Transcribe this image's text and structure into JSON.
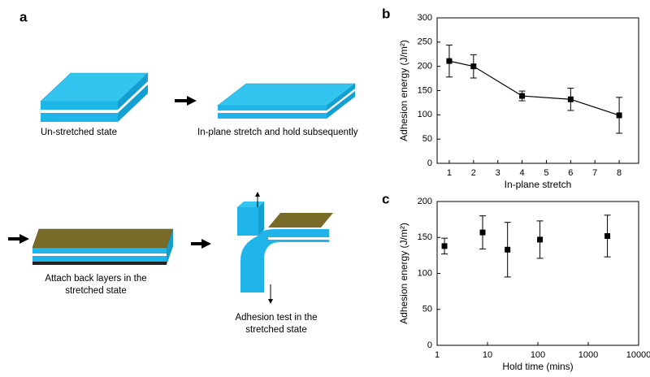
{
  "panel_label": "a",
  "diagram": {
    "step1": {
      "lines": [
        "Un-stretched state"
      ]
    },
    "step2": {
      "lines": [
        "In-plane stretch and hold subsequently"
      ]
    },
    "step3": {
      "lines": [
        "Attach back layers in the",
        "stretched state"
      ]
    },
    "step4": {
      "lines": [
        "Adhesion test in the",
        "stretched state"
      ]
    }
  },
  "chart_data": [
    {
      "type": "line",
      "panel_label": "b",
      "xlabel": "In-plane stretch",
      "ylabel": "Adhesion energy (J/m²)",
      "x": [
        1,
        2,
        4,
        6,
        8
      ],
      "values": [
        211,
        200,
        139,
        132,
        99
      ],
      "errors": [
        33,
        24,
        10,
        23,
        37
      ],
      "color": "#000000",
      "xlim": [
        0.5,
        8.8
      ],
      "xticks": [
        1,
        2,
        3,
        4,
        5,
        6,
        7,
        8
      ],
      "ylim": [
        0,
        300
      ],
      "yticks": [
        0,
        50,
        100,
        150,
        200,
        250,
        300
      ],
      "xscale": "linear"
    },
    {
      "type": "scatter",
      "panel_label": "c",
      "xlabel": "Hold time (mins)",
      "ylabel": "Adhesion energy (J/m²)",
      "x": [
        1.4,
        8,
        25,
        110,
        2400
      ],
      "values": [
        138,
        157,
        133,
        147,
        152
      ],
      "errors": [
        11,
        23,
        38,
        26,
        29
      ],
      "color": "#000000",
      "xlim": [
        1,
        10000
      ],
      "xticks": [
        1,
        10,
        100,
        1000,
        10000
      ],
      "ylim": [
        0,
        200
      ],
      "yticks": [
        0,
        50,
        100,
        150,
        200
      ],
      "xscale": "log"
    }
  ]
}
